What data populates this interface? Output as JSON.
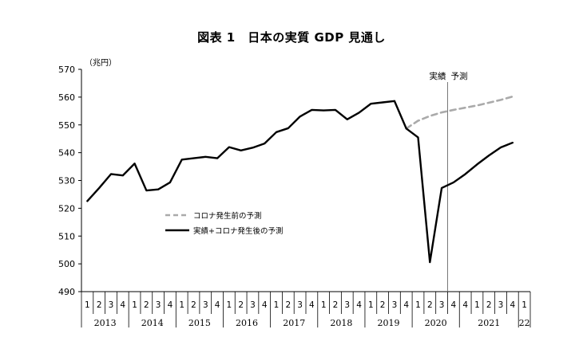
{
  "chart_data": {
    "type": "line",
    "title": "図表 1　日本の実質 GDP 見通し",
    "unit": "（兆円）",
    "ylim": [
      490,
      570
    ],
    "yticks": [
      490,
      500,
      510,
      520,
      530,
      540,
      550,
      560,
      570
    ],
    "quarter_labels": [
      "1",
      "2",
      "3",
      "4",
      "1",
      "2",
      "3",
      "4",
      "1",
      "2",
      "3",
      "4",
      "1",
      "2",
      "3",
      "4",
      "1",
      "2",
      "3",
      "4",
      "1",
      "2",
      "3",
      "4",
      "1",
      "2",
      "3",
      "4",
      "1",
      "2",
      "3",
      "4",
      "4",
      "1",
      "2",
      "3",
      "4",
      "1"
    ],
    "years": [
      {
        "label": "2013",
        "start": 0,
        "end": 3
      },
      {
        "label": "2014",
        "start": 4,
        "end": 7
      },
      {
        "label": "2015",
        "start": 8,
        "end": 11
      },
      {
        "label": "2016",
        "start": 12,
        "end": 15
      },
      {
        "label": "2017",
        "start": 16,
        "end": 19
      },
      {
        "label": "2018",
        "start": 20,
        "end": 23
      },
      {
        "label": "2019",
        "start": 24,
        "end": 27
      },
      {
        "label": "2020",
        "start": 28,
        "end": 31
      },
      {
        "label": "2021",
        "start": 32,
        "end": 36
      },
      {
        "label": "22",
        "start": 37,
        "end": 37
      }
    ],
    "annotations": {
      "actual": "実績",
      "forecast": "予測",
      "divider_after_index": 30
    },
    "legend_position": "center-left",
    "series": [
      {
        "name": "実績+コロナ発生後の予測",
        "color": "#000000",
        "style": "solid",
        "start_index": 0,
        "values": [
          522.6,
          527.3,
          532.3,
          531.8,
          536.1,
          526.4,
          526.8,
          529.3,
          537.5,
          538.0,
          538.5,
          538.0,
          542.0,
          540.8,
          541.8,
          543.3,
          547.4,
          548.8,
          553.0,
          555.4,
          555.2,
          555.4,
          552.0,
          554.4,
          557.6,
          558.1,
          558.6,
          548.7,
          545.5,
          500.6,
          527.3,
          529.3,
          532.3,
          535.8,
          539.0,
          541.9,
          543.6
        ]
      },
      {
        "name": "コロナ発生前の予測",
        "color": "#aaaaaa",
        "style": "dashed",
        "start_index": 27,
        "values": [
          548.7,
          551.5,
          553.2,
          554.5,
          555.4,
          556.2,
          557.0,
          558.0,
          559.0,
          560.2
        ]
      }
    ]
  }
}
